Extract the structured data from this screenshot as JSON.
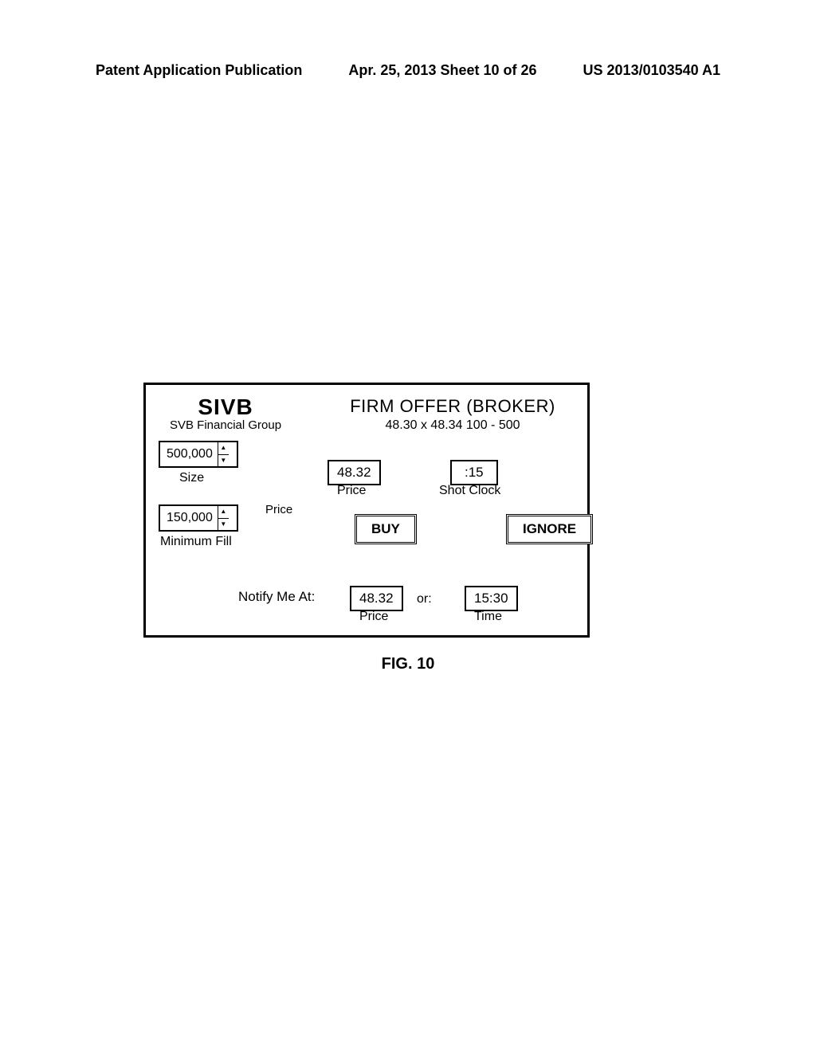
{
  "header": {
    "left": "Patent Application Publication",
    "center": "Apr. 25, 2013  Sheet 10 of 26",
    "right": "US 2013/0103540 A1"
  },
  "figure": {
    "ticker_symbol": "SIVB",
    "ticker_name": "SVB Financial Group",
    "offer_title": "FIRM OFFER (BROKER)",
    "quote": "48.30 x 48.34  100 - 500",
    "size_value": "500,000",
    "size_label": "Size",
    "minfill_value": "150,000",
    "minfill_label": "Minimum Fill",
    "price_left_label": "Price",
    "offer_price": "48.32",
    "offer_price_label": "Price",
    "shotclock": ":15",
    "shotclock_label": "Shot Clock",
    "buy_label": "BUY",
    "ignore_label": "IGNORE",
    "notify_label": "Notify Me At:",
    "notify_price": "48.32",
    "notify_price_label": "Price",
    "or_label": "or:",
    "notify_time": "15:30",
    "notify_time_label": "Time"
  },
  "caption": "FIG. 10"
}
